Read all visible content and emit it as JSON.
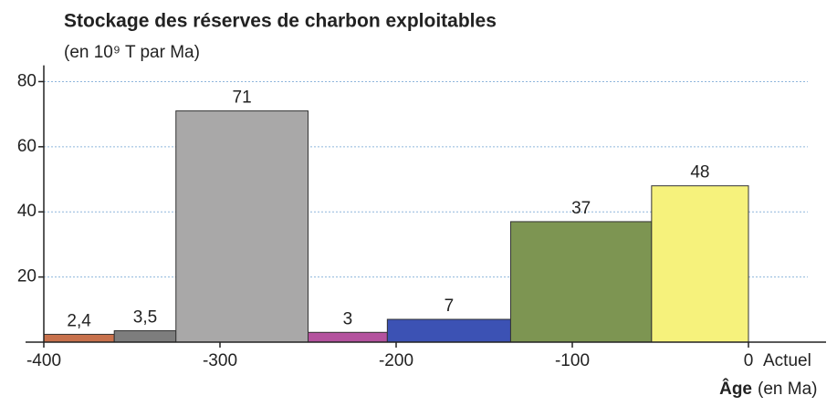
{
  "chart_data": {
    "type": "histogram",
    "title": "Stockage des réserves de charbon exploitables",
    "subtitle": "(en 10⁹ T par Ma)",
    "x_label": "Âge",
    "x_label_unit": "(en Ma)",
    "x_end_label": "Actuel",
    "bins": [
      -400,
      -360,
      -325,
      -250,
      -205,
      -135,
      -55,
      0
    ],
    "values": [
      2.4,
      3.5,
      71,
      3,
      7,
      37,
      48
    ],
    "value_labels": [
      "2,4",
      "3,5",
      "71",
      "3",
      "7",
      "37",
      "48"
    ],
    "colors": [
      "#c8714c",
      "#7d7d7d",
      "#a9a8a8",
      "#b4529e",
      "#3c52b4",
      "#7d9552",
      "#f6f27c"
    ],
    "xlim": [
      -400,
      0
    ],
    "xticks": [
      -400,
      -300,
      -200,
      -100,
      0
    ],
    "ylim": [
      0,
      85
    ],
    "yticks": [
      20,
      40,
      60,
      80
    ],
    "grid": true
  }
}
